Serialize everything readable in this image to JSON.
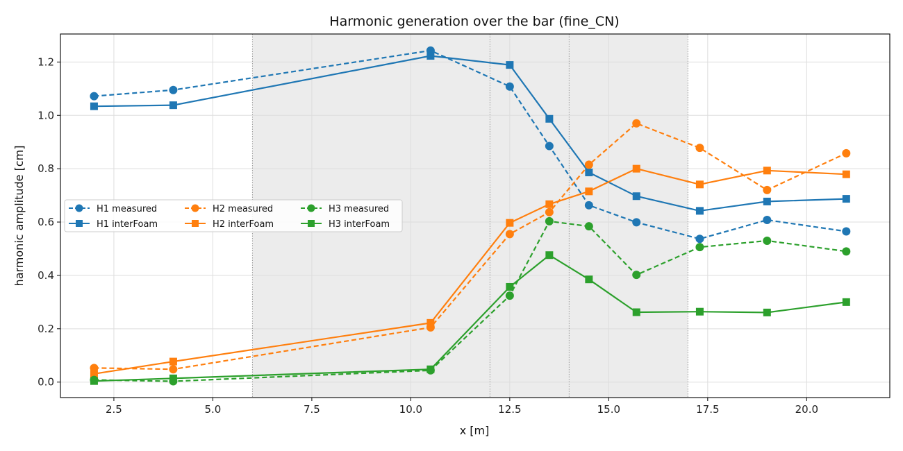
{
  "chart_data": {
    "type": "line",
    "title": "Harmonic generation over the bar (fine_CN)",
    "xlabel": "x [m]",
    "ylabel": "harmonic amplitude [cm]",
    "xlim": [
      1.15,
      22.1
    ],
    "ylim": [
      -0.058,
      1.305
    ],
    "xticks": [
      2.5,
      5.0,
      7.5,
      10.0,
      12.5,
      15.0,
      17.5,
      20.0
    ],
    "xtick_labels": [
      "2.5",
      "5.0",
      "7.5",
      "10.0",
      "12.5",
      "15.0",
      "17.5",
      "20.0"
    ],
    "yticks": [
      0.0,
      0.2,
      0.4,
      0.6,
      0.8,
      1.0,
      1.2
    ],
    "ytick_labels": [
      "0.0",
      "0.2",
      "0.4",
      "0.6",
      "0.8",
      "1.0",
      "1.2"
    ],
    "grid": true,
    "legend_position": "center-left",
    "legend_columns": 3,
    "shaded_regions": [
      [
        6.0,
        17.0
      ]
    ],
    "vertical_lines": [
      6.0,
      12.0,
      14.0,
      17.0
    ],
    "series": [
      {
        "name": "H1 measured",
        "color": "#1f77b4",
        "style": "dashed",
        "marker": "circle",
        "x": [
          2,
          4,
          10.5,
          12.5,
          13.5,
          14.5,
          15.7,
          17.3,
          19,
          21
        ],
        "y": [
          1.072,
          1.095,
          1.243,
          1.108,
          0.885,
          0.663,
          0.599,
          0.537,
          0.608,
          0.565
        ]
      },
      {
        "name": "H1 interFoam",
        "color": "#1f77b4",
        "style": "solid",
        "marker": "square",
        "x": [
          2,
          4,
          10.5,
          12.5,
          13.5,
          14.5,
          15.7,
          17.3,
          19,
          21
        ],
        "y": [
          1.034,
          1.038,
          1.223,
          1.189,
          0.987,
          0.786,
          0.697,
          0.642,
          0.677,
          0.687
        ]
      },
      {
        "name": "H2 measured",
        "color": "#ff7f0e",
        "style": "dashed",
        "marker": "circle",
        "x": [
          2,
          4,
          10.5,
          12.5,
          13.5,
          14.5,
          15.7,
          17.3,
          19,
          21
        ],
        "y": [
          0.053,
          0.048,
          0.205,
          0.555,
          0.637,
          0.815,
          0.97,
          0.878,
          0.72,
          0.858
        ]
      },
      {
        "name": "H2 interFoam",
        "color": "#ff7f0e",
        "style": "solid",
        "marker": "square",
        "x": [
          2,
          4,
          10.5,
          12.5,
          13.5,
          14.5,
          15.7,
          17.3,
          19,
          21
        ],
        "y": [
          0.031,
          0.077,
          0.222,
          0.597,
          0.667,
          0.715,
          0.8,
          0.741,
          0.793,
          0.779
        ]
      },
      {
        "name": "H3 measured",
        "color": "#2ca02c",
        "style": "dashed",
        "marker": "circle",
        "x": [
          2,
          4,
          10.5,
          12.5,
          13.5,
          14.5,
          15.7,
          17.3,
          19,
          21
        ],
        "y": [
          0.008,
          0.003,
          0.044,
          0.324,
          0.603,
          0.584,
          0.402,
          0.506,
          0.53,
          0.49
        ]
      },
      {
        "name": "H3 interFoam",
        "color": "#2ca02c",
        "style": "solid",
        "marker": "square",
        "x": [
          2,
          4,
          10.5,
          12.5,
          13.5,
          14.5,
          15.7,
          17.3,
          19,
          21
        ],
        "y": [
          0.004,
          0.014,
          0.048,
          0.357,
          0.476,
          0.385,
          0.262,
          0.264,
          0.261,
          0.3
        ]
      }
    ]
  }
}
